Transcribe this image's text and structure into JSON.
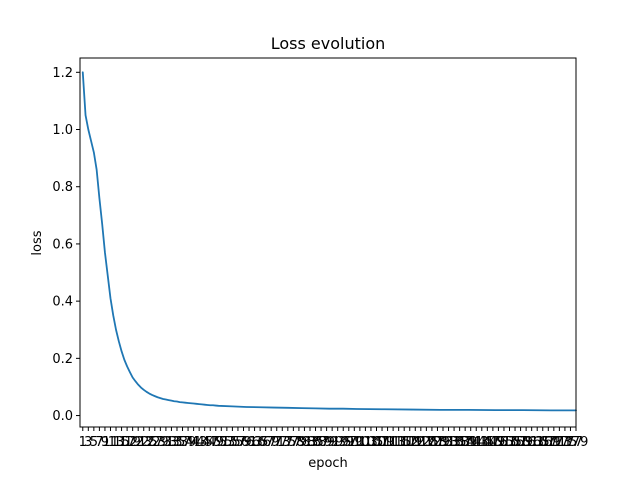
{
  "chart_data": {
    "type": "line",
    "title": "Loss evolution",
    "xlabel": "epoch",
    "ylabel": "loss",
    "x_start": 1,
    "x_end": 179,
    "x_tick_step": 2,
    "ylim": [
      -0.04,
      1.25
    ],
    "y_ticks": [
      0.0,
      0.2,
      0.4,
      0.6,
      0.8,
      1.0,
      1.2
    ],
    "y_tick_labels": [
      "0.0",
      "0.2",
      "0.4",
      "0.6",
      "0.8",
      "1.0",
      "1.2"
    ],
    "grid": false,
    "series": [
      {
        "color": "#1f77b4",
        "x": [
          1,
          2,
          3,
          4,
          5,
          6,
          7,
          8,
          9,
          10,
          11,
          12,
          13,
          14,
          15,
          16,
          17,
          18,
          19,
          20,
          21,
          22,
          23,
          24,
          25,
          26,
          27,
          28,
          29,
          30,
          31,
          32,
          33,
          34,
          35,
          36,
          37,
          38,
          39,
          40,
          41,
          42,
          43,
          44,
          45,
          46,
          47,
          48,
          49,
          50,
          55,
          60,
          65,
          70,
          75,
          80,
          85,
          90,
          95,
          100,
          110,
          120,
          130,
          140,
          150,
          160,
          170,
          179
        ],
        "values": [
          1.2,
          1.05,
          1.0,
          0.96,
          0.92,
          0.86,
          0.76,
          0.67,
          0.57,
          0.49,
          0.41,
          0.35,
          0.3,
          0.26,
          0.225,
          0.195,
          0.172,
          0.152,
          0.133,
          0.12,
          0.108,
          0.098,
          0.09,
          0.083,
          0.077,
          0.072,
          0.068,
          0.064,
          0.061,
          0.058,
          0.056,
          0.054,
          0.052,
          0.05,
          0.049,
          0.047,
          0.046,
          0.045,
          0.044,
          0.043,
          0.042,
          0.041,
          0.04,
          0.039,
          0.038,
          0.037,
          0.036,
          0.036,
          0.035,
          0.034,
          0.032,
          0.03,
          0.029,
          0.028,
          0.027,
          0.026,
          0.025,
          0.024,
          0.024,
          0.023,
          0.022,
          0.021,
          0.02,
          0.02,
          0.019,
          0.019,
          0.018,
          0.018
        ]
      }
    ]
  }
}
